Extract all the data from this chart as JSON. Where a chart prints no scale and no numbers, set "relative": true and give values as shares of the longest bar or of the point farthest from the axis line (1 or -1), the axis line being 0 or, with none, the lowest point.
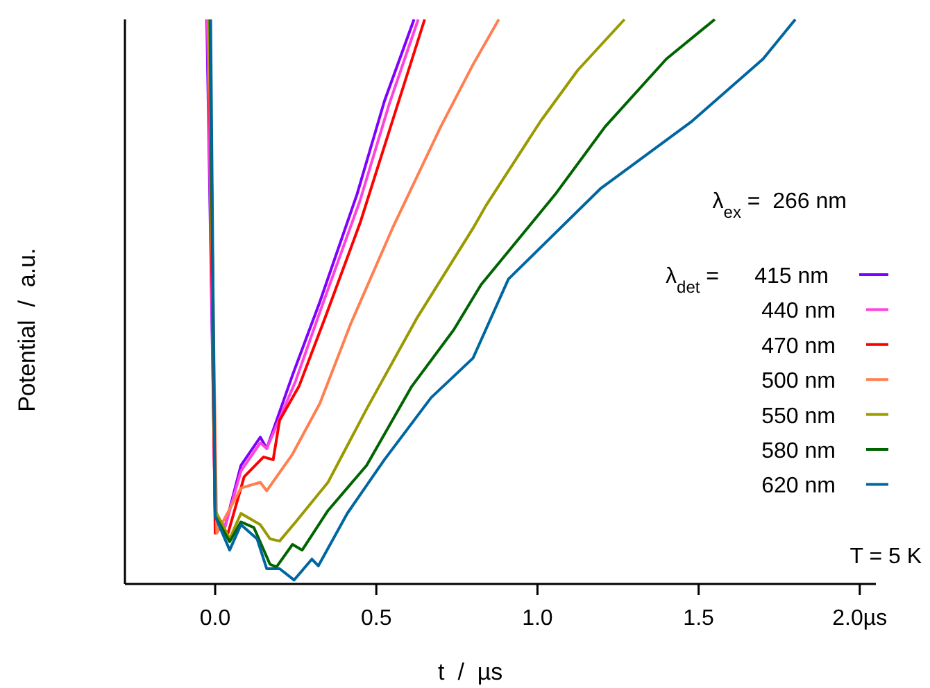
{
  "chart_data": {
    "type": "line",
    "relative": true,
    "xlabel": "t  /  µs",
    "ylabel": "Potential  /  a.u.",
    "legend_title": "λ$_{det}$ =",
    "legend": "right",
    "grid": false,
    "marker": "none",
    "line_style": "solid",
    "xlim": [
      -0.28,
      2.05
    ],
    "xticks": [
      {
        "value": 0,
        "label": "0.0"
      },
      0.5,
      {
        "value": 1,
        "label": "1.0"
      },
      1.5,
      {
        "value": 2,
        "label": "2.0µs"
      }
    ],
    "annotations": [
      "λ$_{ex}$ =  266 nm",
      "T = 5 K"
    ],
    "series": [
      {
        "name": "415 nm",
        "color": "#7f00ff",
        "x": [
          -0.026,
          0.0,
          0.03,
          0.08,
          0.14,
          0.16,
          0.24,
          0.325,
          0.44,
          0.525,
          0.617
        ],
        "values": [
          1,
          0.125,
          0.1,
          0.21,
          0.26,
          0.24,
          0.37,
          0.5,
          0.69,
          0.855,
          1
        ]
      },
      {
        "name": "440 nm",
        "color": "#ff44dd",
        "x": [
          -0.024,
          0.0,
          0.03,
          0.08,
          0.14,
          0.16,
          0.25,
          0.33,
          0.45,
          0.54,
          0.63
        ],
        "values": [
          1,
          0.12,
          0.1,
          0.2,
          0.25,
          0.24,
          0.36,
          0.49,
          0.68,
          0.85,
          1
        ]
      },
      {
        "name": "470 nm",
        "color": "#ff0000",
        "x": [
          -0.02,
          0.0,
          0.02,
          0.04,
          0.09,
          0.15,
          0.18,
          0.2,
          0.26,
          0.34,
          0.45,
          0.55,
          0.65
        ],
        "values": [
          1,
          0.09,
          0.1,
          0.09,
          0.19,
          0.225,
          0.22,
          0.29,
          0.35,
          0.47,
          0.64,
          0.82,
          1
        ]
      },
      {
        "name": "500 nm",
        "color": "#ff7f50",
        "x": [
          -0.02,
          0.005,
          0.08,
          0.14,
          0.16,
          0.24,
          0.325,
          0.42,
          0.55,
          0.7,
          0.8,
          0.88
        ],
        "values": [
          1,
          0.09,
          0.17,
          0.18,
          0.165,
          0.23,
          0.32,
          0.46,
          0.63,
          0.81,
          0.92,
          1
        ]
      },
      {
        "name": "550 nm",
        "color": "#9a9a00",
        "x": [
          -0.018,
          0.0,
          0.045,
          0.08,
          0.14,
          0.17,
          0.2,
          0.25,
          0.35,
          0.47,
          0.625,
          0.8,
          0.84,
          1.01,
          1.125,
          1.27
        ],
        "values": [
          1,
          0.13,
          0.08,
          0.125,
          0.105,
          0.08,
          0.076,
          0.11,
          0.18,
          0.31,
          0.47,
          0.63,
          0.67,
          0.82,
          0.91,
          1
        ]
      },
      {
        "name": "580 nm",
        "color": "#006400",
        "x": [
          -0.016,
          0.0,
          0.045,
          0.08,
          0.12,
          0.17,
          0.19,
          0.24,
          0.27,
          0.35,
          0.47,
          0.61,
          0.74,
          0.825,
          1.055,
          1.21,
          1.4,
          1.55
        ],
        "values": [
          1,
          0.12,
          0.075,
          0.11,
          0.1,
          0.035,
          0.03,
          0.07,
          0.06,
          0.13,
          0.21,
          0.35,
          0.45,
          0.53,
          0.69,
          0.81,
          0.93,
          1
        ]
      },
      {
        "name": "620 nm",
        "color": "#0066a0",
        "x": [
          -0.014,
          0.0,
          0.045,
          0.08,
          0.13,
          0.16,
          0.2,
          0.245,
          0.3,
          0.32,
          0.41,
          0.525,
          0.67,
          0.8,
          0.91,
          1.195,
          1.48,
          1.7,
          1.8
        ],
        "values": [
          1,
          0.12,
          0.06,
          0.105,
          0.08,
          0.027,
          0.027,
          0.007,
          0.044,
          0.032,
          0.125,
          0.22,
          0.33,
          0.4,
          0.54,
          0.7,
          0.82,
          0.93,
          1
        ]
      }
    ]
  }
}
